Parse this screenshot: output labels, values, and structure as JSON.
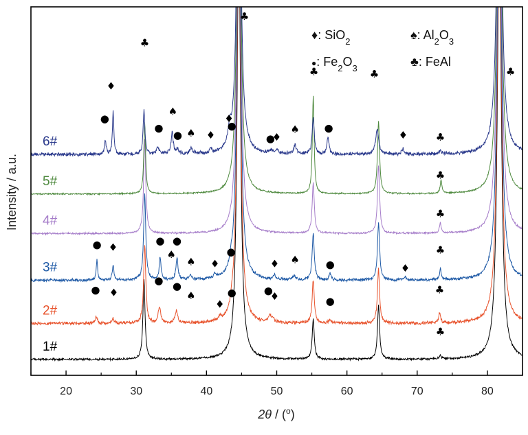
{
  "chart_data": {
    "type": "line",
    "title": "",
    "xlabel": "2θ / (°)",
    "xlabel_parts": {
      "var": "2θ",
      "rest": " / (",
      "degree": "o",
      "close": ")"
    },
    "ylabel": "Intensity / a.u.",
    "xlim": [
      15,
      85
    ],
    "x_ticks": [
      20,
      30,
      40,
      50,
      60,
      70,
      80
    ],
    "y_ticks_shown": false,
    "grid": false,
    "legend_position": "top-right",
    "legend": [
      {
        "symbol": "♦",
        "phase": "SiO",
        "sub1": "2",
        "mid": "",
        "sub2": ""
      },
      {
        "symbol": "♠",
        "phase": "Al",
        "sub1": "2",
        "mid": "O",
        "sub2": "3"
      },
      {
        "symbol": "●",
        "phase": "Fe",
        "sub1": "2",
        "mid": "O",
        "sub2": "3"
      },
      {
        "symbol": "♣",
        "phase": "FeAl",
        "sub1": "",
        "mid": "",
        "sub2": ""
      }
    ],
    "series": [
      {
        "name": "1#",
        "color": "#000000",
        "offset": 0.0,
        "noise": 0.012,
        "peaks": [
          [
            31.1,
            1.1,
            0.18
          ],
          [
            44.6,
            6.0,
            0.3
          ],
          [
            55.2,
            0.55,
            0.18
          ],
          [
            64.5,
            0.75,
            0.18
          ],
          [
            81.7,
            6.0,
            0.35
          ],
          [
            73.3,
            0.05,
            0.15
          ]
        ]
      },
      {
        "name": "2#",
        "color": "#e8542e",
        "offset": 0.5,
        "noise": 0.018,
        "peaks": [
          [
            24.3,
            0.1,
            0.15
          ],
          [
            26.7,
            0.07,
            0.15
          ],
          [
            31.2,
            1.1,
            0.18
          ],
          [
            33.3,
            0.22,
            0.22
          ],
          [
            35.7,
            0.17,
            0.22
          ],
          [
            41.9,
            0.05,
            0.2
          ],
          [
            43.6,
            0.08,
            0.2
          ],
          [
            44.6,
            6.0,
            0.3
          ],
          [
            49.0,
            0.1,
            0.2
          ],
          [
            49.5,
            0.05,
            0.2
          ],
          [
            55.2,
            0.6,
            0.18
          ],
          [
            57.6,
            0.05,
            0.2
          ],
          [
            64.5,
            0.75,
            0.18
          ],
          [
            73.2,
            0.15,
            0.15
          ],
          [
            81.7,
            6.0,
            0.35
          ]
        ]
      },
      {
        "name": "3#",
        "color": "#1f5aa6",
        "offset": 1.1,
        "noise": 0.016,
        "peaks": [
          [
            24.4,
            0.28,
            0.12
          ],
          [
            26.7,
            0.2,
            0.15
          ],
          [
            31.2,
            1.2,
            0.18
          ],
          [
            33.4,
            0.32,
            0.15
          ],
          [
            35.8,
            0.3,
            0.18
          ],
          [
            37.7,
            0.07,
            0.2
          ],
          [
            41.2,
            0.06,
            0.2
          ],
          [
            43.5,
            0.1,
            0.2
          ],
          [
            44.6,
            6.0,
            0.3
          ],
          [
            49.7,
            0.05,
            0.2
          ],
          [
            52.5,
            0.06,
            0.2
          ],
          [
            55.2,
            0.65,
            0.18
          ],
          [
            57.6,
            0.1,
            0.15
          ],
          [
            64.5,
            0.8,
            0.18
          ],
          [
            68.3,
            0.04,
            0.2
          ],
          [
            73.3,
            0.14,
            0.15
          ],
          [
            81.7,
            6.0,
            0.35
          ]
        ]
      },
      {
        "name": "4#",
        "color": "#a57cc9",
        "offset": 1.75,
        "noise": 0.01,
        "peaks": [
          [
            31.2,
            1.3,
            0.18
          ],
          [
            44.6,
            6.0,
            0.3
          ],
          [
            55.2,
            0.7,
            0.18
          ],
          [
            64.5,
            0.95,
            0.18
          ],
          [
            73.3,
            0.14,
            0.15
          ],
          [
            81.7,
            6.0,
            0.35
          ]
        ]
      },
      {
        "name": "5#",
        "color": "#4f8a3f",
        "offset": 2.3,
        "noise": 0.008,
        "peaks": [
          [
            31.2,
            1.0,
            0.15
          ],
          [
            44.6,
            6.0,
            0.3
          ],
          [
            55.2,
            1.35,
            0.15
          ],
          [
            64.5,
            1.0,
            0.18
          ],
          [
            73.4,
            0.18,
            0.15
          ],
          [
            81.7,
            6.0,
            0.35
          ]
        ]
      },
      {
        "name": "6#",
        "color": "#2b3a8c",
        "offset": 2.85,
        "noise": 0.02,
        "peaks": [
          [
            25.6,
            0.18,
            0.15
          ],
          [
            26.7,
            0.6,
            0.12
          ],
          [
            31.1,
            0.6,
            0.15
          ],
          [
            33.1,
            0.1,
            0.2
          ],
          [
            35.1,
            0.3,
            0.18
          ],
          [
            35.9,
            0.07,
            0.2
          ],
          [
            37.8,
            0.08,
            0.2
          ],
          [
            40.6,
            0.05,
            0.2
          ],
          [
            43.3,
            0.22,
            0.25
          ],
          [
            44.6,
            6.0,
            0.3
          ],
          [
            49.2,
            0.04,
            0.2
          ],
          [
            50.0,
            0.05,
            0.2
          ],
          [
            52.6,
            0.12,
            0.2
          ],
          [
            55.2,
            0.5,
            0.18
          ],
          [
            57.3,
            0.22,
            0.18
          ],
          [
            64.3,
            0.35,
            0.25
          ],
          [
            68.0,
            0.07,
            0.2
          ],
          [
            73.3,
            0.05,
            0.15
          ],
          [
            81.7,
            6.0,
            0.35
          ]
        ]
      }
    ],
    "annotations": [
      {
        "x": 31.2,
        "y": 4.35,
        "s": "♣"
      },
      {
        "x": 45.4,
        "y": 4.72,
        "s": "♣"
      },
      {
        "x": 55.3,
        "y": 3.95,
        "s": "♣"
      },
      {
        "x": 63.9,
        "y": 3.92,
        "s": "♣"
      },
      {
        "x": 83.3,
        "y": 3.95,
        "s": "♣"
      },
      {
        "x": 26.4,
        "y": 3.75,
        "s": "♦"
      },
      {
        "x": 25.5,
        "y": 3.3,
        "s": "●"
      },
      {
        "x": 35.2,
        "y": 3.4,
        "s": "♠"
      },
      {
        "x": 43.2,
        "y": 3.3,
        "s": "♦"
      },
      {
        "x": 33.2,
        "y": 3.17,
        "s": "●"
      },
      {
        "x": 35.9,
        "y": 3.07,
        "s": "●"
      },
      {
        "x": 37.8,
        "y": 3.1,
        "s": "♠"
      },
      {
        "x": 40.6,
        "y": 3.07,
        "s": "♦"
      },
      {
        "x": 43.6,
        "y": 3.2,
        "s": "●"
      },
      {
        "x": 49.1,
        "y": 3.02,
        "s": "●"
      },
      {
        "x": 50.0,
        "y": 3.04,
        "s": "♦"
      },
      {
        "x": 52.6,
        "y": 3.15,
        "s": "♠"
      },
      {
        "x": 57.4,
        "y": 3.17,
        "s": "●"
      },
      {
        "x": 68.0,
        "y": 3.07,
        "s": "♦"
      },
      {
        "x": 73.3,
        "y": 3.04,
        "s": "♣"
      },
      {
        "x": 73.3,
        "y": 2.51,
        "s": "♣"
      },
      {
        "x": 73.3,
        "y": 1.98,
        "s": "♣"
      },
      {
        "x": 24.4,
        "y": 1.55,
        "s": "●"
      },
      {
        "x": 26.7,
        "y": 1.51,
        "s": "♦"
      },
      {
        "x": 33.4,
        "y": 1.6,
        "s": "●"
      },
      {
        "x": 35.8,
        "y": 1.6,
        "s": "●"
      },
      {
        "x": 35.0,
        "y": 1.41,
        "s": "♠"
      },
      {
        "x": 37.8,
        "y": 1.31,
        "s": "♠"
      },
      {
        "x": 41.2,
        "y": 1.28,
        "s": "♦"
      },
      {
        "x": 43.5,
        "y": 1.45,
        "s": "●"
      },
      {
        "x": 49.7,
        "y": 1.28,
        "s": "♦"
      },
      {
        "x": 52.6,
        "y": 1.34,
        "s": "♠"
      },
      {
        "x": 57.6,
        "y": 1.27,
        "s": "●"
      },
      {
        "x": 68.3,
        "y": 1.22,
        "s": "♦"
      },
      {
        "x": 73.3,
        "y": 1.47,
        "s": "♣"
      },
      {
        "x": 24.2,
        "y": 0.92,
        "s": "●"
      },
      {
        "x": 26.8,
        "y": 0.88,
        "s": "♦"
      },
      {
        "x": 33.2,
        "y": 1.05,
        "s": "●"
      },
      {
        "x": 35.8,
        "y": 0.97,
        "s": "●"
      },
      {
        "x": 37.8,
        "y": 0.84,
        "s": "♠"
      },
      {
        "x": 41.9,
        "y": 0.72,
        "s": "♦"
      },
      {
        "x": 43.6,
        "y": 0.88,
        "s": "●"
      },
      {
        "x": 48.8,
        "y": 0.91,
        "s": "●"
      },
      {
        "x": 49.7,
        "y": 0.83,
        "s": "♦"
      },
      {
        "x": 57.6,
        "y": 0.76,
        "s": "●"
      },
      {
        "x": 73.2,
        "y": 0.92,
        "s": "♣"
      },
      {
        "x": 73.3,
        "y": 0.34,
        "s": "♣"
      }
    ]
  }
}
